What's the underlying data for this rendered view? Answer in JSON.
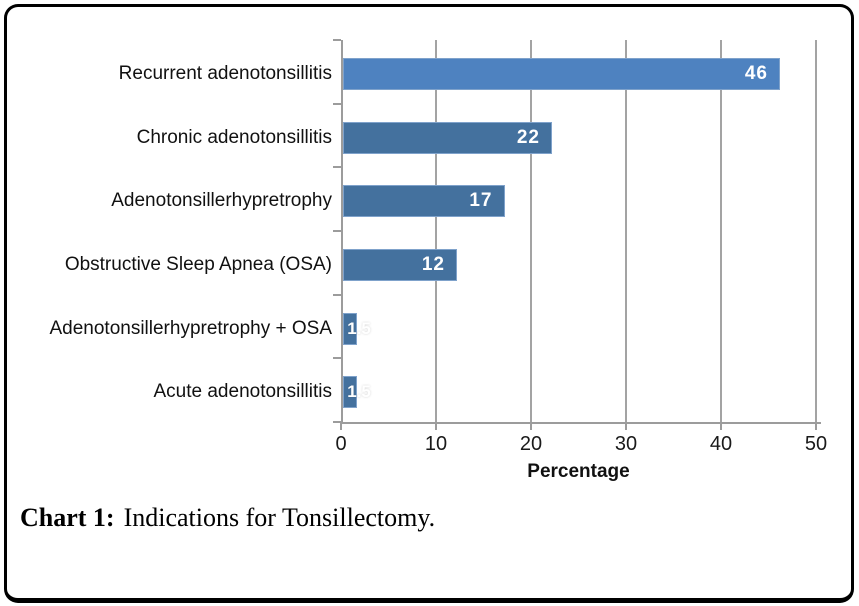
{
  "caption": {
    "prefix": "Chart 1:",
    "text": "Indications for Tonsillectomy."
  },
  "chart_data": {
    "type": "bar",
    "orientation": "horizontal",
    "title": "",
    "categories": [
      "Recurrent adenotonsillitis",
      "Chronic adenotonsillitis",
      "Adenotonsillerhypretrophy",
      "Obstructive Sleep Apnea (OSA)",
      "Adenotonsillerhypretrophy + OSA",
      "Acute adenotonsillitis"
    ],
    "values": [
      46,
      22,
      17,
      12,
      1.5,
      1.5
    ],
    "value_labels": [
      "46",
      "22",
      "17",
      "12",
      "1.5",
      "1.5"
    ],
    "bar_colors": [
      "#4e82c0",
      "#44719e",
      "#44719e",
      "#44719e",
      "#44719e",
      "#44719e"
    ],
    "xlabel": "Percentage",
    "xlim": [
      0,
      50
    ],
    "xticks": [
      0,
      10,
      20,
      30,
      40,
      50
    ],
    "grid": true,
    "legend": "none",
    "colors": {
      "bar_border": "#7fa2cb",
      "gridline": "#a3a3a3",
      "axis": "#9c9c9c",
      "value_label": "#ffffff",
      "tick_label": "#1a1a1a"
    }
  }
}
